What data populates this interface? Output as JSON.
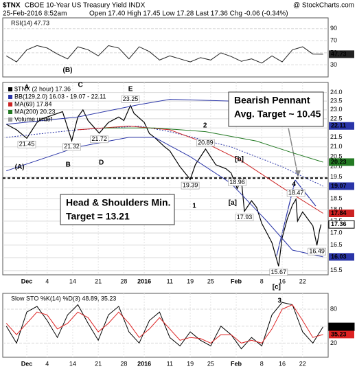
{
  "header": {
    "symbol": "$TNX",
    "name": "CBOE 10-Year US Treasury Yield INDX",
    "source": "@ StockCharts.com",
    "datetime": "25-Feb-2016 8:52am",
    "quote": "Open 17.40 High 17.45 Low 17.28 Last 17.36 Chg -0.06 (-0.34%)"
  },
  "notes": [
    [
      "Bearish Pennant",
      "Avg. Target ~ 10.45"
    ],
    [
      "Head & Shoulders Min.",
      "Target = 13.21"
    ]
  ],
  "chart_data": [
    {
      "type": "line",
      "title": "RSI(14) 47.73",
      "xlim": [
        -4.7,
        59
      ],
      "ylim": [
        10,
        108
      ],
      "yticks": [
        30,
        50,
        70,
        90
      ],
      "grid": true,
      "series": [
        {
          "color": "#222222",
          "end_tag": true,
          "x": [
            -4,
            -2,
            0,
            2,
            4,
            6,
            8,
            10,
            12,
            14,
            16,
            18,
            20,
            22,
            24,
            26,
            28,
            30,
            32,
            34,
            36,
            38,
            40,
            42,
            44,
            46,
            48,
            50,
            52,
            54,
            56,
            58
          ],
          "values": [
            45,
            35,
            55,
            62,
            58,
            48,
            40,
            60,
            55,
            45,
            62,
            58,
            40,
            60,
            52,
            38,
            45,
            40,
            35,
            42,
            38,
            50,
            44,
            36,
            40,
            33,
            45,
            35,
            55,
            60,
            48,
            47.73
          ]
        }
      ],
      "annotations": [
        {
          "text": "(B)",
          "x": 8,
          "y": 21,
          "color": "#000000"
        }
      ]
    },
    {
      "type": "line",
      "log": true,
      "xlim": [
        -4.7,
        59
      ],
      "ylim": [
        15.34,
        24.6
      ],
      "grid": true,
      "xticks": [
        {
          "value": 0,
          "label": "Dec"
        },
        4,
        {
          "value": 9,
          "label": "14"
        },
        {
          "value": 14,
          "label": "21"
        },
        {
          "value": 19,
          "label": "28"
        },
        {
          "value": 23,
          "label": "2016"
        },
        {
          "value": 28,
          "label": "11"
        },
        {
          "value": 32,
          "label": "19"
        },
        {
          "value": 36,
          "label": "25"
        },
        {
          "value": 41,
          "label": "Feb"
        },
        {
          "value": 46,
          "label": "8"
        },
        {
          "value": 50,
          "label": "16"
        },
        {
          "value": 54,
          "label": "22"
        }
      ],
      "yticks": [
        15.5,
        {
          "value": 16,
          "label": "16.0"
        },
        16.5,
        {
          "value": 17,
          "label": "17.0"
        },
        17.5,
        {
          "value": 18,
          "label": "18.0"
        },
        18.5,
        {
          "value": 19,
          "label": "19.0"
        },
        19.5,
        {
          "value": 20,
          "label": "20.0"
        },
        20.5,
        {
          "value": 21,
          "label": "21.0"
        },
        21.5,
        {
          "value": 22,
          "label": "22.0"
        },
        22.5,
        {
          "value": 23,
          "label": "23.0"
        },
        23.5,
        {
          "value": 24,
          "label": "24.0"
        }
      ],
      "reference_lines": [
        19.45
      ],
      "legend_extra": [
        "Volume undef"
      ],
      "series": [
        {
          "name": "$TNX (2 hour) 17.36",
          "color": "#000000",
          "end_tag": true,
          "width": 1.2,
          "x": [
            -4,
            -2,
            0,
            2,
            3,
            5,
            7,
            8.8,
            10,
            11,
            12,
            14.2,
            16,
            18,
            19,
            20.3,
            21,
            23,
            24,
            25,
            27,
            28,
            30,
            32,
            33,
            35,
            37,
            39,
            40,
            41.2,
            42,
            42.6,
            44,
            45,
            46,
            47,
            48,
            49.3,
            50,
            51,
            52,
            52.7,
            53,
            54,
            55,
            56,
            56.8,
            57.3,
            57.6
          ],
          "values": [
            22.2,
            21.9,
            21.45,
            22.3,
            22.5,
            22.7,
            22.9,
            21.32,
            22.6,
            23.0,
            22.4,
            21.72,
            22.3,
            22.6,
            22.4,
            23.25,
            22.8,
            22.3,
            21.7,
            21.5,
            21.0,
            20.8,
            20.0,
            19.39,
            20.1,
            20.89,
            20.1,
            19.9,
            19.7,
            18.96,
            19.4,
            17.93,
            18.4,
            18.1,
            17.4,
            17.0,
            16.6,
            15.67,
            16.8,
            17.6,
            18.2,
            18.47,
            17.5,
            17.9,
            17.6,
            17.3,
            16.49,
            17.1,
            17.36
          ]
        },
        {
          "name": "BB(129,2.0) 16.03 - 19.07 - 22.11",
          "color": "#2a35a8",
          "end_tag": true,
          "width": 1,
          "x": [
            -4,
            10,
            22,
            28,
            40,
            50,
            58
          ],
          "values": [
            22.2,
            22.6,
            23.3,
            23.6,
            23.5,
            23.0,
            22.11
          ]
        },
        {
          "color": "#2a35a8",
          "end_tag": true,
          "dash": true,
          "width": 1,
          "x": [
            -4,
            10,
            22,
            28,
            40,
            50,
            58
          ],
          "values": [
            21.5,
            21.9,
            22.1,
            21.8,
            21.0,
            20.0,
            19.07
          ]
        },
        {
          "color": "#2a35a8",
          "end_tag": true,
          "width": 1,
          "x": [
            -4,
            10,
            20,
            25,
            32,
            40,
            47,
            52,
            58
          ],
          "values": [
            19.8,
            21.0,
            21.5,
            21.5,
            20.5,
            19.2,
            17.5,
            16.3,
            16.03
          ]
        },
        {
          "name": "MA(69) 17.84",
          "color": "#cc2222",
          "end_tag": true,
          "width": 1,
          "x": [
            10,
            20,
            28,
            35,
            42,
            50,
            58
          ],
          "values": [
            21.9,
            22.1,
            21.9,
            21.2,
            20.3,
            19.0,
            17.84
          ]
        },
        {
          "name": "MA(200) 20.23",
          "color": "#237a23",
          "end_tag": true,
          "width": 1,
          "x": [
            15,
            25,
            35,
            45,
            52,
            58
          ],
          "values": [
            22.0,
            22.0,
            21.8,
            21.3,
            20.7,
            20.23
          ]
        }
      ],
      "price_labels": [
        {
          "x": 0,
          "value": 21.45,
          "kind": "low"
        },
        {
          "x": 8.8,
          "value": 21.32,
          "kind": "low"
        },
        {
          "x": 14.2,
          "value": 21.72,
          "kind": "low"
        },
        {
          "x": 20.3,
          "value": 23.25,
          "kind": "high"
        },
        {
          "x": 35,
          "value": 20.89,
          "kind": "high"
        },
        {
          "x": 32,
          "value": 19.39,
          "kind": "low"
        },
        {
          "x": 41.2,
          "value": 18.96,
          "kind": "high"
        },
        {
          "x": 42.6,
          "value": 17.93,
          "kind": "low"
        },
        {
          "x": 52.7,
          "value": 18.47,
          "kind": "high"
        },
        {
          "x": 49.3,
          "value": 15.67,
          "kind": "low"
        },
        {
          "x": 56.8,
          "value": 16.49,
          "kind": "low"
        }
      ],
      "annotations": [
        {
          "text": "A",
          "x": 0,
          "y": 24.3,
          "color": "#7b1fa2"
        },
        {
          "text": "C",
          "x": 10.5,
          "y": 24.45,
          "color": "#7b1fa2"
        },
        {
          "text": "E",
          "x": 20.3,
          "y": 24.19,
          "color": "#7b1fa2"
        },
        {
          "text": "B",
          "x": 8.1,
          "y": 20.09,
          "color": "#7b1fa2"
        },
        {
          "text": "D",
          "x": 14.6,
          "y": 20.2,
          "color": "#7b1fa2"
        },
        {
          "text": "(A)",
          "x": -1.4,
          "y": 19.98,
          "color": "#000000"
        },
        {
          "text": "1",
          "x": 32.8,
          "y": 18.16,
          "color": "#7b1fa2"
        },
        {
          "text": "2",
          "x": 34.9,
          "y": 22.12,
          "color": "#7b1fa2"
        },
        {
          "text": "[b]",
          "x": 41.6,
          "y": 20.37,
          "color": "#cc2222"
        },
        {
          "text": "[a]",
          "x": 40.3,
          "y": 18.3,
          "color": "#cc2222"
        },
        {
          "text": "4",
          "x": 52.3,
          "y": 19.16,
          "color": "#7b1fa2"
        }
      ]
    },
    {
      "type": "line",
      "title": "Slow STO %K(14) %D(3) 48.89, 35.23",
      "xlim": [
        -4.7,
        59
      ],
      "ylim": [
        -5,
        108
      ],
      "yticks": [
        20,
        50,
        80
      ],
      "grid": true,
      "xticks": [
        {
          "value": 0,
          "label": "Dec"
        },
        4,
        {
          "value": 9,
          "label": "14"
        },
        {
          "value": 14,
          "label": "21"
        },
        {
          "value": 19,
          "label": "28"
        },
        {
          "value": 23,
          "label": "2016"
        },
        {
          "value": 28,
          "label": "11"
        },
        {
          "value": 32,
          "label": "19"
        },
        {
          "value": 36,
          "label": "25"
        },
        {
          "value": 41,
          "label": "Feb"
        },
        {
          "value": 46,
          "label": "8"
        },
        {
          "value": 50,
          "label": "16"
        },
        {
          "value": 54,
          "label": "22"
        }
      ],
      "series": [
        {
          "color": "#000000",
          "end_tag": true,
          "width": 1,
          "x": [
            -4,
            -2,
            0,
            2,
            4,
            6,
            8,
            10,
            12,
            14,
            16,
            18,
            20,
            22,
            24,
            26,
            28,
            30,
            32,
            34,
            36,
            38,
            40,
            42,
            44,
            46,
            48,
            50,
            52,
            54,
            56,
            58
          ],
          "values": [
            50,
            20,
            75,
            85,
            60,
            30,
            70,
            88,
            55,
            25,
            70,
            85,
            40,
            20,
            60,
            75,
            30,
            15,
            40,
            25,
            15,
            50,
            35,
            10,
            30,
            15,
            70,
            92,
            88,
            40,
            20,
            48.89
          ]
        },
        {
          "color": "#dd2222",
          "end_tag": true,
          "width": 1,
          "x": [
            -4,
            -2,
            0,
            2,
            4,
            6,
            8,
            10,
            12,
            14,
            16,
            18,
            20,
            22,
            24,
            26,
            28,
            30,
            32,
            34,
            36,
            38,
            40,
            42,
            44,
            46,
            48,
            50,
            52,
            54,
            56,
            58
          ],
          "values": [
            55,
            35,
            55,
            75,
            70,
            45,
            55,
            75,
            65,
            40,
            55,
            75,
            55,
            30,
            45,
            65,
            45,
            25,
            30,
            28,
            20,
            35,
            35,
            20,
            25,
            20,
            45,
            80,
            88,
            60,
            30,
            35.23
          ]
        }
      ],
      "annotations": [
        {
          "text": "[c]",
          "x": 48.9,
          "y": 119,
          "color": "#cc2222"
        },
        {
          "text": "3",
          "x": 49.5,
          "y": 94.6,
          "color": "#7b1fa2"
        }
      ]
    }
  ]
}
